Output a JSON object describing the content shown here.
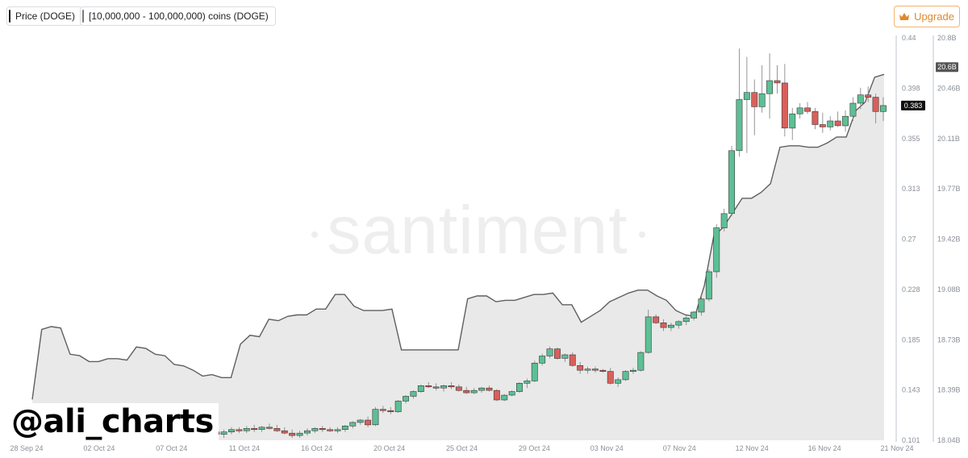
{
  "legend": {
    "price_label": "Price (DOGE)",
    "holders_label": "[10,000,000 - 100,000,000) coins (DOGE)"
  },
  "upgrade": {
    "label": "Upgrade",
    "icon": "crown-icon",
    "color": "#e0892b"
  },
  "watermark": "santiment",
  "handle": "@ali_charts",
  "chart_data": {
    "type": "candlestick+line",
    "x_labels": [
      "28 Sep 24",
      "02 Oct 24",
      "07 Oct 24",
      "11 Oct 24",
      "16 Oct 24",
      "20 Oct 24",
      "25 Oct 24",
      "29 Oct 24",
      "03 Nov 24",
      "07 Nov 24",
      "12 Nov 24",
      "16 Nov 24",
      "21 Nov 24"
    ],
    "price_axis": {
      "ticks": [
        "0.44",
        "0.398",
        "0.355",
        "0.313",
        "0.27",
        "0.228",
        "0.185",
        "0.143",
        "0.101"
      ],
      "range": [
        0.101,
        0.44
      ],
      "current": "0.383"
    },
    "holdings_axis": {
      "ticks": [
        "20.8B",
        "20.46B",
        "20.11B",
        "19.77B",
        "19.42B",
        "19.08B",
        "18.73B",
        "18.39B",
        "18.04B"
      ],
      "range": [
        18.04,
        20.8
      ],
      "current": "20.6B"
    },
    "colors": {
      "up": "#5dbf95",
      "down": "#d9605b",
      "line": "#5f5f5f",
      "area": "#e9e9e9"
    },
    "candles": [
      {
        "o": 0.112,
        "h": 0.115,
        "l": 0.11,
        "c": 0.111
      },
      {
        "o": 0.111,
        "h": 0.114,
        "l": 0.108,
        "c": 0.109
      },
      {
        "o": 0.109,
        "h": 0.112,
        "l": 0.106,
        "c": 0.108
      },
      {
        "o": 0.108,
        "h": 0.111,
        "l": 0.104,
        "c": 0.106
      },
      {
        "o": 0.106,
        "h": 0.11,
        "l": 0.103,
        "c": 0.108
      },
      {
        "o": 0.108,
        "h": 0.112,
        "l": 0.106,
        "c": 0.11
      },
      {
        "o": 0.11,
        "h": 0.112,
        "l": 0.107,
        "c": 0.109
      },
      {
        "o": 0.109,
        "h": 0.113,
        "l": 0.107,
        "c": 0.111
      },
      {
        "o": 0.111,
        "h": 0.114,
        "l": 0.108,
        "c": 0.11
      },
      {
        "o": 0.11,
        "h": 0.113,
        "l": 0.108,
        "c": 0.112
      },
      {
        "o": 0.112,
        "h": 0.115,
        "l": 0.11,
        "c": 0.111
      },
      {
        "o": 0.111,
        "h": 0.114,
        "l": 0.108,
        "c": 0.109
      },
      {
        "o": 0.109,
        "h": 0.112,
        "l": 0.106,
        "c": 0.107
      },
      {
        "o": 0.107,
        "h": 0.11,
        "l": 0.103,
        "c": 0.105
      },
      {
        "o": 0.105,
        "h": 0.109,
        "l": 0.103,
        "c": 0.107
      },
      {
        "o": 0.107,
        "h": 0.111,
        "l": 0.105,
        "c": 0.109
      },
      {
        "o": 0.109,
        "h": 0.112,
        "l": 0.107,
        "c": 0.111
      },
      {
        "o": 0.111,
        "h": 0.113,
        "l": 0.108,
        "c": 0.11
      },
      {
        "o": 0.11,
        "h": 0.112,
        "l": 0.108,
        "c": 0.109
      },
      {
        "o": 0.109,
        "h": 0.112,
        "l": 0.107,
        "c": 0.11
      },
      {
        "o": 0.11,
        "h": 0.114,
        "l": 0.108,
        "c": 0.113
      },
      {
        "o": 0.113,
        "h": 0.117,
        "l": 0.111,
        "c": 0.116
      },
      {
        "o": 0.116,
        "h": 0.119,
        "l": 0.114,
        "c": 0.118
      },
      {
        "o": 0.118,
        "h": 0.121,
        "l": 0.112,
        "c": 0.114
      },
      {
        "o": 0.114,
        "h": 0.129,
        "l": 0.113,
        "c": 0.127
      },
      {
        "o": 0.127,
        "h": 0.13,
        "l": 0.124,
        "c": 0.126
      },
      {
        "o": 0.126,
        "h": 0.129,
        "l": 0.123,
        "c": 0.125
      },
      {
        "o": 0.125,
        "h": 0.135,
        "l": 0.124,
        "c": 0.134
      },
      {
        "o": 0.134,
        "h": 0.139,
        "l": 0.132,
        "c": 0.138
      },
      {
        "o": 0.138,
        "h": 0.143,
        "l": 0.136,
        "c": 0.142
      },
      {
        "o": 0.142,
        "h": 0.148,
        "l": 0.141,
        "c": 0.147
      },
      {
        "o": 0.147,
        "h": 0.15,
        "l": 0.145,
        "c": 0.146
      },
      {
        "o": 0.146,
        "h": 0.149,
        "l": 0.143,
        "c": 0.145
      },
      {
        "o": 0.145,
        "h": 0.148,
        "l": 0.142,
        "c": 0.147
      },
      {
        "o": 0.147,
        "h": 0.15,
        "l": 0.144,
        "c": 0.146
      },
      {
        "o": 0.146,
        "h": 0.148,
        "l": 0.142,
        "c": 0.143
      },
      {
        "o": 0.143,
        "h": 0.146,
        "l": 0.14,
        "c": 0.141
      },
      {
        "o": 0.141,
        "h": 0.145,
        "l": 0.14,
        "c": 0.143
      },
      {
        "o": 0.143,
        "h": 0.146,
        "l": 0.141,
        "c": 0.145
      },
      {
        "o": 0.145,
        "h": 0.147,
        "l": 0.142,
        "c": 0.143
      },
      {
        "o": 0.143,
        "h": 0.144,
        "l": 0.134,
        "c": 0.135
      },
      {
        "o": 0.135,
        "h": 0.14,
        "l": 0.134,
        "c": 0.139
      },
      {
        "o": 0.139,
        "h": 0.143,
        "l": 0.138,
        "c": 0.142
      },
      {
        "o": 0.142,
        "h": 0.15,
        "l": 0.141,
        "c": 0.149
      },
      {
        "o": 0.149,
        "h": 0.153,
        "l": 0.145,
        "c": 0.151
      },
      {
        "o": 0.151,
        "h": 0.168,
        "l": 0.15,
        "c": 0.166
      },
      {
        "o": 0.166,
        "h": 0.174,
        "l": 0.164,
        "c": 0.172
      },
      {
        "o": 0.172,
        "h": 0.18,
        "l": 0.17,
        "c": 0.178
      },
      {
        "o": 0.178,
        "h": 0.179,
        "l": 0.169,
        "c": 0.17
      },
      {
        "o": 0.17,
        "h": 0.174,
        "l": 0.167,
        "c": 0.173
      },
      {
        "o": 0.173,
        "h": 0.175,
        "l": 0.163,
        "c": 0.164
      },
      {
        "o": 0.164,
        "h": 0.167,
        "l": 0.157,
        "c": 0.16
      },
      {
        "o": 0.16,
        "h": 0.163,
        "l": 0.157,
        "c": 0.161
      },
      {
        "o": 0.161,
        "h": 0.163,
        "l": 0.158,
        "c": 0.16
      },
      {
        "o": 0.16,
        "h": 0.161,
        "l": 0.158,
        "c": 0.159
      },
      {
        "o": 0.159,
        "h": 0.162,
        "l": 0.148,
        "c": 0.149
      },
      {
        "o": 0.149,
        "h": 0.154,
        "l": 0.146,
        "c": 0.152
      },
      {
        "o": 0.152,
        "h": 0.16,
        "l": 0.151,
        "c": 0.159
      },
      {
        "o": 0.159,
        "h": 0.162,
        "l": 0.157,
        "c": 0.16
      },
      {
        "o": 0.16,
        "h": 0.176,
        "l": 0.159,
        "c": 0.175
      },
      {
        "o": 0.175,
        "h": 0.211,
        "l": 0.174,
        "c": 0.205
      },
      {
        "o": 0.205,
        "h": 0.207,
        "l": 0.199,
        "c": 0.2
      },
      {
        "o": 0.2,
        "h": 0.203,
        "l": 0.193,
        "c": 0.196
      },
      {
        "o": 0.196,
        "h": 0.2,
        "l": 0.193,
        "c": 0.198
      },
      {
        "o": 0.198,
        "h": 0.202,
        "l": 0.195,
        "c": 0.201
      },
      {
        "o": 0.201,
        "h": 0.206,
        "l": 0.198,
        "c": 0.204
      },
      {
        "o": 0.204,
        "h": 0.21,
        "l": 0.202,
        "c": 0.209
      },
      {
        "o": 0.209,
        "h": 0.223,
        "l": 0.206,
        "c": 0.22
      },
      {
        "o": 0.22,
        "h": 0.245,
        "l": 0.218,
        "c": 0.243
      },
      {
        "o": 0.243,
        "h": 0.283,
        "l": 0.238,
        "c": 0.28
      },
      {
        "o": 0.28,
        "h": 0.296,
        "l": 0.277,
        "c": 0.292
      },
      {
        "o": 0.292,
        "h": 0.349,
        "l": 0.29,
        "c": 0.345
      },
      {
        "o": 0.345,
        "h": 0.431,
        "l": 0.34,
        "c": 0.388
      },
      {
        "o": 0.388,
        "h": 0.424,
        "l": 0.343,
        "c": 0.394
      },
      {
        "o": 0.394,
        "h": 0.405,
        "l": 0.358,
        "c": 0.382
      },
      {
        "o": 0.382,
        "h": 0.417,
        "l": 0.377,
        "c": 0.393
      },
      {
        "o": 0.393,
        "h": 0.427,
        "l": 0.372,
        "c": 0.404
      },
      {
        "o": 0.404,
        "h": 0.417,
        "l": 0.393,
        "c": 0.402
      },
      {
        "o": 0.402,
        "h": 0.418,
        "l": 0.357,
        "c": 0.364
      },
      {
        "o": 0.364,
        "h": 0.381,
        "l": 0.354,
        "c": 0.376
      },
      {
        "o": 0.376,
        "h": 0.385,
        "l": 0.372,
        "c": 0.381
      },
      {
        "o": 0.381,
        "h": 0.386,
        "l": 0.376,
        "c": 0.378
      },
      {
        "o": 0.378,
        "h": 0.381,
        "l": 0.363,
        "c": 0.367
      },
      {
        "o": 0.367,
        "h": 0.377,
        "l": 0.36,
        "c": 0.365
      },
      {
        "o": 0.365,
        "h": 0.374,
        "l": 0.362,
        "c": 0.37
      },
      {
        "o": 0.37,
        "h": 0.378,
        "l": 0.365,
        "c": 0.366
      },
      {
        "o": 0.366,
        "h": 0.379,
        "l": 0.361,
        "c": 0.374
      },
      {
        "o": 0.374,
        "h": 0.39,
        "l": 0.37,
        "c": 0.385
      },
      {
        "o": 0.385,
        "h": 0.398,
        "l": 0.38,
        "c": 0.392
      },
      {
        "o": 0.392,
        "h": 0.399,
        "l": 0.386,
        "c": 0.39
      },
      {
        "o": 0.39,
        "h": 0.393,
        "l": 0.368,
        "c": 0.378
      },
      {
        "o": 0.378,
        "h": 0.39,
        "l": 0.37,
        "c": 0.383
      }
    ],
    "holdings": [
      18.32,
      18.8,
      18.82,
      18.81,
      18.63,
      18.62,
      18.58,
      18.58,
      18.6,
      18.6,
      18.59,
      18.68,
      18.67,
      18.63,
      18.62,
      18.56,
      18.55,
      18.52,
      18.48,
      18.49,
      18.47,
      18.47,
      18.7,
      18.76,
      18.75,
      18.87,
      18.86,
      18.89,
      18.9,
      18.9,
      18.94,
      18.94,
      19.04,
      19.04,
      18.96,
      18.93,
      18.93,
      18.93,
      18.94,
      18.66,
      18.66,
      18.66,
      18.66,
      18.66,
      18.66,
      18.66,
      19.01,
      19.03,
      19.03,
      18.99,
      19.0,
      19.0,
      19.02,
      19.04,
      19.04,
      19.05,
      18.97,
      18.97,
      18.85,
      18.89,
      18.93,
      18.99,
      19.02,
      19.05,
      19.07,
      19.07,
      19.03,
      19.0,
      18.93,
      18.9,
      18.89,
      19.1,
      19.44,
      19.5,
      19.6,
      19.7,
      19.7,
      19.74,
      19.8,
      20.05,
      20.06,
      20.06,
      20.05,
      20.05,
      20.08,
      20.12,
      20.12,
      20.3,
      20.36,
      20.53,
      20.55
    ]
  }
}
